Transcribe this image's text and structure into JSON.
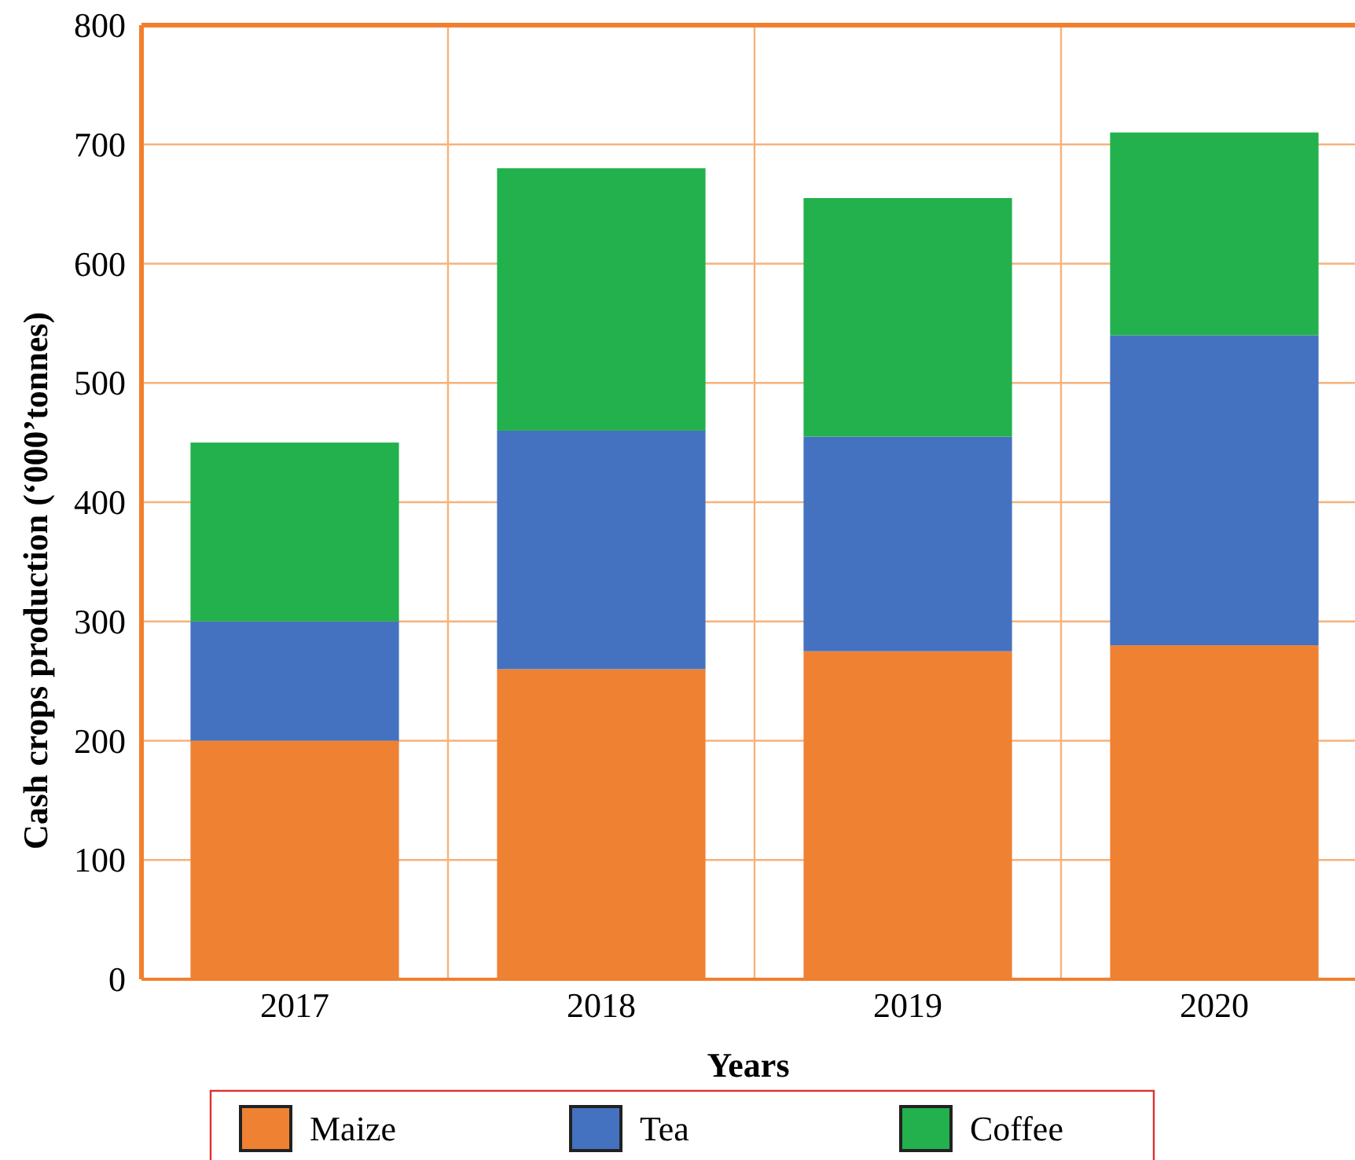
{
  "chart_data": {
    "type": "bar",
    "stacked": true,
    "xlabel": "Years",
    "ylabel": "Cash crops production (‘000’tonnes)",
    "categories": [
      "2017",
      "2018",
      "2019",
      "2020"
    ],
    "series": [
      {
        "name": "Maize",
        "color": "#ef8133",
        "values": [
          200,
          260,
          275,
          280
        ]
      },
      {
        "name": "Tea",
        "color": "#4472c0",
        "values": [
          100,
          200,
          180,
          260
        ]
      },
      {
        "name": "Coffee",
        "color": "#22b14c",
        "values": [
          150,
          220,
          200,
          170
        ]
      }
    ],
    "ylim": [
      0,
      800
    ],
    "yticks": [
      0,
      100,
      200,
      300,
      400,
      500,
      600,
      700,
      800
    ],
    "grid": true,
    "legend": "bottom"
  }
}
